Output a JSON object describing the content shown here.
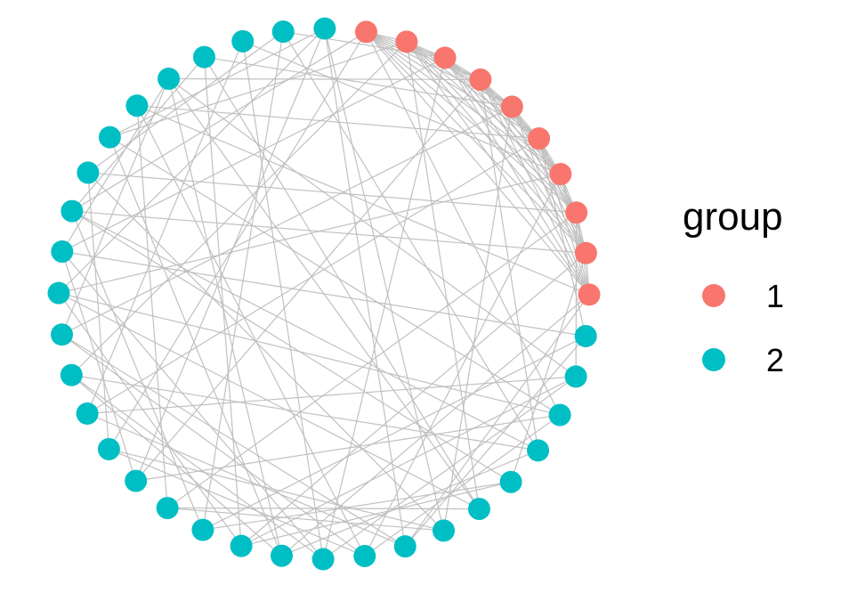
{
  "legend": {
    "title": "group",
    "items": [
      {
        "label": "1",
        "color": "#F8766D"
      },
      {
        "label": "2",
        "color": "#00BFC4"
      }
    ]
  },
  "graph": {
    "layout": "circle",
    "edge_color": "#BEBEBE",
    "node_count": 40,
    "groups": [
      1,
      1,
      1,
      1,
      1,
      1,
      1,
      1,
      1,
      1,
      2,
      2,
      2,
      2,
      2,
      2,
      2,
      2,
      2,
      2,
      2,
      2,
      2,
      2,
      2,
      2,
      2,
      2,
      2,
      2,
      2,
      2,
      2,
      2,
      2,
      2,
      2,
      2,
      2,
      2
    ],
    "edges": [
      [
        0,
        1
      ],
      [
        0,
        2
      ],
      [
        0,
        3
      ],
      [
        0,
        4
      ],
      [
        0,
        5
      ],
      [
        0,
        6
      ],
      [
        0,
        7
      ],
      [
        0,
        8
      ],
      [
        0,
        9
      ],
      [
        1,
        2
      ],
      [
        1,
        3
      ],
      [
        1,
        4
      ],
      [
        1,
        5
      ],
      [
        1,
        6
      ],
      [
        1,
        7
      ],
      [
        1,
        8
      ],
      [
        1,
        9
      ],
      [
        2,
        3
      ],
      [
        2,
        4
      ],
      [
        2,
        5
      ],
      [
        2,
        6
      ],
      [
        2,
        7
      ],
      [
        2,
        8
      ],
      [
        2,
        9
      ],
      [
        3,
        4
      ],
      [
        3,
        5
      ],
      [
        3,
        6
      ],
      [
        3,
        7
      ],
      [
        3,
        8
      ],
      [
        3,
        9
      ],
      [
        4,
        5
      ],
      [
        4,
        6
      ],
      [
        4,
        7
      ],
      [
        4,
        8
      ],
      [
        4,
        9
      ],
      [
        5,
        6
      ],
      [
        5,
        7
      ],
      [
        5,
        8
      ],
      [
        5,
        9
      ],
      [
        6,
        7
      ],
      [
        6,
        8
      ],
      [
        6,
        9
      ],
      [
        7,
        8
      ],
      [
        7,
        9
      ],
      [
        8,
        9
      ],
      [
        0,
        25
      ],
      [
        0,
        31
      ],
      [
        1,
        27
      ],
      [
        1,
        33
      ],
      [
        2,
        30
      ],
      [
        2,
        38
      ],
      [
        3,
        24
      ],
      [
        3,
        35
      ],
      [
        4,
        28
      ],
      [
        4,
        36
      ],
      [
        5,
        26
      ],
      [
        5,
        34
      ],
      [
        6,
        29
      ],
      [
        6,
        37
      ],
      [
        7,
        23
      ],
      [
        7,
        32
      ],
      [
        8,
        21
      ],
      [
        8,
        31
      ],
      [
        9,
        20
      ],
      [
        9,
        34
      ],
      [
        0,
        12
      ],
      [
        1,
        15
      ],
      [
        2,
        19
      ],
      [
        3,
        13
      ],
      [
        4,
        16
      ],
      [
        5,
        10
      ],
      [
        6,
        18
      ],
      [
        7,
        11
      ],
      [
        8,
        14
      ],
      [
        9,
        17
      ],
      [
        10,
        22
      ],
      [
        10,
        30
      ],
      [
        11,
        26
      ],
      [
        11,
        35
      ],
      [
        12,
        24
      ],
      [
        12,
        33
      ],
      [
        13,
        27
      ],
      [
        13,
        38
      ],
      [
        14,
        21
      ],
      [
        14,
        31
      ],
      [
        15,
        29
      ],
      [
        15,
        36
      ],
      [
        16,
        23
      ],
      [
        16,
        32
      ],
      [
        17,
        28
      ],
      [
        17,
        39
      ],
      [
        18,
        25
      ],
      [
        18,
        34
      ],
      [
        19,
        30
      ],
      [
        19,
        37
      ],
      [
        20,
        27
      ],
      [
        20,
        33
      ],
      [
        21,
        29
      ],
      [
        21,
        36
      ],
      [
        22,
        31
      ],
      [
        22,
        38
      ],
      [
        23,
        34
      ],
      [
        24,
        30
      ],
      [
        24,
        39
      ],
      [
        25,
        32
      ],
      [
        26,
        37
      ],
      [
        28,
        35
      ],
      [
        29,
        39
      ],
      [
        10,
        17
      ],
      [
        11,
        19
      ],
      [
        12,
        18
      ],
      [
        13,
        20
      ],
      [
        14,
        22
      ],
      [
        15,
        23
      ],
      [
        16,
        25
      ],
      [
        17,
        26
      ],
      [
        18,
        28
      ],
      [
        19,
        27
      ],
      [
        30,
        35
      ],
      [
        31,
        36
      ],
      [
        32,
        38
      ],
      [
        33,
        39
      ],
      [
        12,
        29
      ],
      [
        15,
        35
      ],
      [
        13,
        31
      ],
      [
        16,
        39
      ],
      [
        11,
        21
      ],
      [
        20,
        35
      ]
    ]
  }
}
